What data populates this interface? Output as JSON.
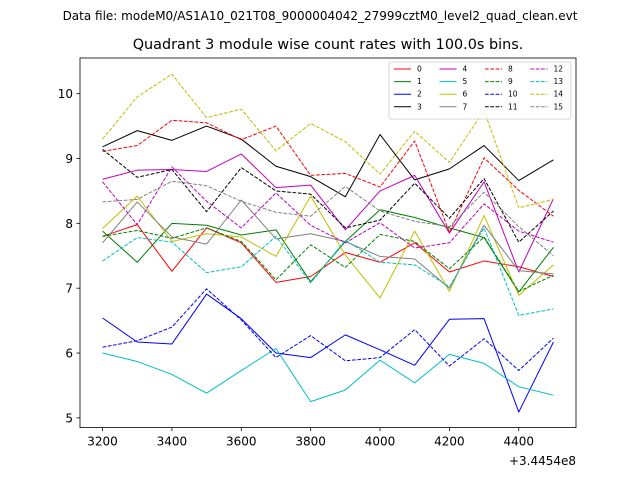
{
  "figure": {
    "suptitle": "Data file: modeM0/AS1A10_021T08_9000004042_27999cztM0_level2_quad_clean.evt",
    "title": "Quadrant 3 module wise count rates with 100.0s bins.",
    "x_offset_label": "+3.4454e8"
  },
  "chart_data": {
    "type": "line",
    "title": "Quadrant 3 module wise count rates with 100.0s bins.",
    "xlabel": "",
    "ylabel": "",
    "x_offset": 344540000,
    "x": [
      3200,
      3300,
      3400,
      3500,
      3600,
      3700,
      3800,
      3900,
      4000,
      4100,
      4200,
      4300,
      4400,
      4500
    ],
    "xlim": [
      3135,
      4565
    ],
    "ylim": [
      4.85,
      10.55
    ],
    "xticks": [
      3200,
      3400,
      3600,
      3800,
      4000,
      4200,
      4400
    ],
    "yticks": [
      5,
      6,
      7,
      8,
      9,
      10
    ],
    "grid": false,
    "legend": "top-right",
    "series": [
      {
        "name": "0",
        "color": "#ff0000",
        "dash": "solid",
        "values": [
          7.8,
          7.98,
          7.26,
          7.93,
          7.7,
          7.09,
          7.18,
          7.55,
          7.4,
          7.7,
          7.25,
          7.42,
          7.33,
          7.18
        ]
      },
      {
        "name": "1",
        "color": "#008000",
        "dash": "solid",
        "values": [
          7.88,
          7.4,
          8.0,
          7.97,
          7.82,
          7.9,
          7.1,
          7.72,
          8.21,
          8.09,
          7.93,
          7.78,
          6.94,
          7.63
        ]
      },
      {
        "name": "2",
        "color": "#0000ff",
        "dash": "solid",
        "values": [
          6.54,
          6.17,
          6.14,
          6.91,
          6.53,
          6.0,
          5.93,
          6.28,
          6.05,
          5.81,
          6.52,
          6.53,
          5.09,
          6.17
        ]
      },
      {
        "name": "3",
        "color": "#000000",
        "dash": "solid",
        "values": [
          9.18,
          9.43,
          9.28,
          9.5,
          9.3,
          8.88,
          8.72,
          8.41,
          9.37,
          8.67,
          8.84,
          9.2,
          8.66,
          8.98
        ]
      },
      {
        "name": "4",
        "color": "#bf00bf",
        "dash": "solid",
        "values": [
          8.68,
          8.82,
          8.83,
          8.8,
          9.07,
          8.55,
          8.59,
          7.9,
          8.5,
          8.74,
          7.85,
          8.64,
          7.25,
          8.38
        ]
      },
      {
        "name": "5",
        "color": "#00bfbf",
        "dash": "solid",
        "values": [
          6.0,
          5.87,
          5.67,
          5.38,
          5.73,
          6.07,
          5.25,
          5.43,
          5.89,
          5.54,
          5.98,
          5.84,
          5.48,
          5.35
        ]
      },
      {
        "name": "6",
        "color": "#bfbf00",
        "dash": "solid",
        "values": [
          7.92,
          8.42,
          7.72,
          7.84,
          7.79,
          7.49,
          8.42,
          7.51,
          6.85,
          7.88,
          6.95,
          8.12,
          6.89,
          7.36
        ]
      },
      {
        "name": "7",
        "color": "#808080",
        "dash": "solid",
        "values": [
          7.7,
          8.33,
          7.79,
          7.68,
          8.36,
          7.76,
          7.84,
          7.72,
          7.49,
          7.45,
          7.0,
          7.97,
          7.27,
          7.22
        ]
      },
      {
        "name": "8",
        "color": "#ff0000",
        "dash": "dashed",
        "values": [
          9.11,
          9.2,
          9.59,
          9.55,
          9.29,
          9.5,
          8.74,
          8.77,
          8.56,
          9.27,
          7.86,
          9.01,
          8.51,
          8.11
        ]
      },
      {
        "name": "9",
        "color": "#008000",
        "dash": "dashed",
        "values": [
          7.8,
          7.89,
          7.77,
          7.93,
          7.72,
          7.13,
          7.67,
          7.32,
          7.83,
          7.72,
          7.3,
          7.79,
          6.95,
          7.2
        ]
      },
      {
        "name": "10",
        "color": "#0000ff",
        "dash": "dashed",
        "values": [
          6.09,
          6.19,
          6.4,
          6.99,
          6.51,
          5.93,
          6.27,
          5.88,
          5.93,
          6.36,
          5.8,
          6.22,
          5.73,
          6.23
        ]
      },
      {
        "name": "11",
        "color": "#000000",
        "dash": "dashed",
        "values": [
          9.14,
          8.71,
          8.83,
          8.18,
          8.86,
          8.5,
          8.45,
          7.93,
          8.05,
          8.62,
          8.08,
          8.69,
          7.71,
          8.19
        ]
      },
      {
        "name": "12",
        "color": "#bf00bf",
        "dash": "dashed",
        "values": [
          8.64,
          7.98,
          8.87,
          8.34,
          7.93,
          8.47,
          7.97,
          7.7,
          8.01,
          7.62,
          7.7,
          8.3,
          7.88,
          7.71
        ]
      },
      {
        "name": "13",
        "color": "#00bfbf",
        "dash": "dashed",
        "values": [
          7.42,
          7.78,
          7.71,
          7.24,
          7.33,
          7.8,
          7.08,
          7.74,
          7.4,
          7.36,
          7.02,
          7.93,
          6.58,
          6.68
        ]
      },
      {
        "name": "14",
        "color": "#bfbf00",
        "dash": "dashed",
        "values": [
          9.3,
          9.95,
          10.3,
          9.63,
          9.76,
          9.12,
          9.54,
          9.26,
          8.76,
          9.42,
          8.94,
          9.74,
          8.24,
          8.37
        ]
      },
      {
        "name": "15",
        "color": "#808080",
        "dash": "dashed",
        "values": [
          8.33,
          8.37,
          8.65,
          8.58,
          8.34,
          8.17,
          8.11,
          8.57,
          8.19,
          8.03,
          7.95,
          8.48,
          7.95,
          7.5
        ]
      }
    ]
  }
}
